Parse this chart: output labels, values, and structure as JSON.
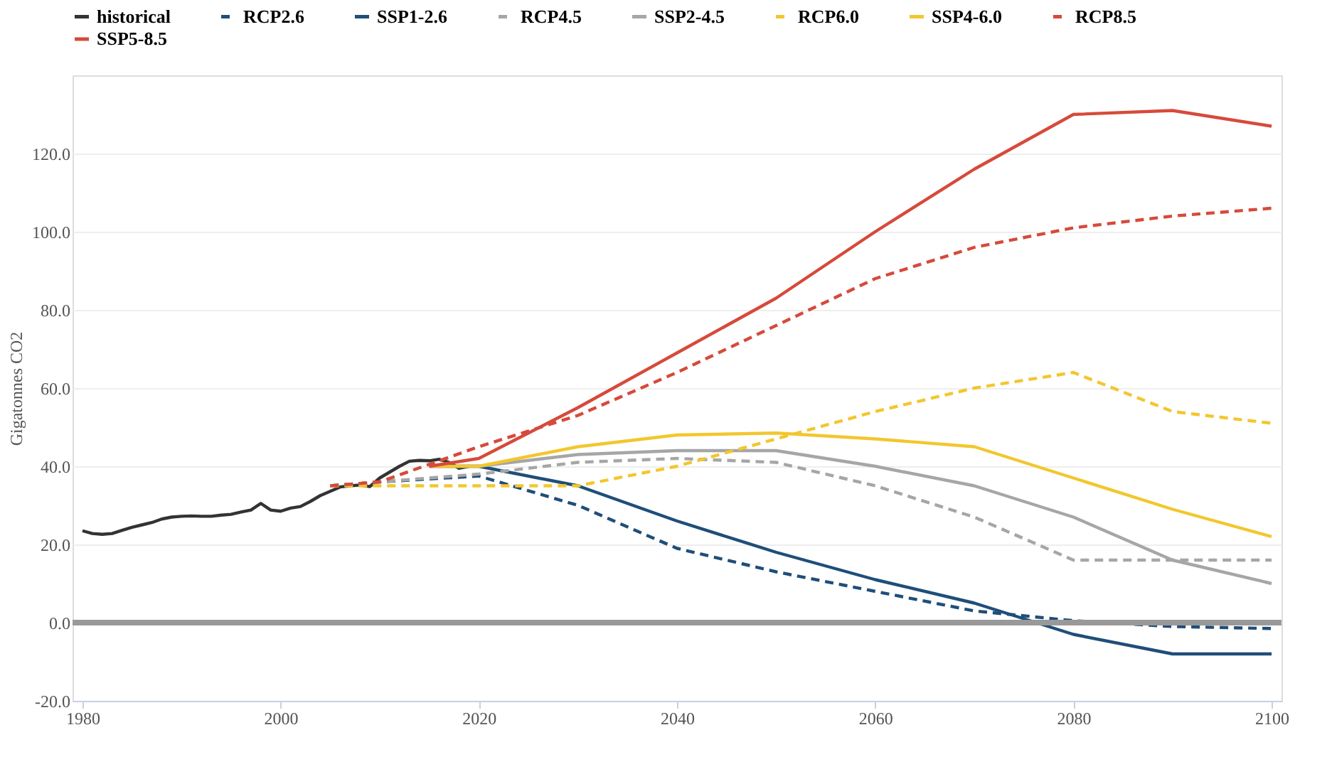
{
  "chart_data": {
    "type": "line",
    "ylabel": "Gigatonnes CO2",
    "legend": "top left",
    "grid": "y",
    "xlim": [
      1979,
      2101
    ],
    "xticks": [
      1980,
      2000,
      2020,
      2040,
      2060,
      2080,
      2100
    ],
    "ylim": [
      -20,
      140
    ],
    "yticks": [
      {
        "value": -20,
        "label": "-20.0"
      },
      {
        "value": 0,
        "label": "0.0"
      },
      {
        "value": 20,
        "label": "20.0"
      },
      {
        "value": 40,
        "label": "40.0"
      },
      {
        "value": 60,
        "label": "60.0"
      },
      {
        "value": 80,
        "label": "80.0"
      },
      {
        "value": 100,
        "label": "100.0"
      },
      {
        "value": 120,
        "label": "120.0"
      }
    ],
    "ref_lines": [
      {
        "axis": "y",
        "value": 0,
        "label": null,
        "color": "#999999"
      }
    ],
    "series": [
      {
        "name": "historical",
        "color": "#333333",
        "line_style": "solid",
        "x": [
          1980,
          1981,
          1982,
          1983,
          1984,
          1985,
          1986,
          1987,
          1988,
          1989,
          1990,
          1991,
          1992,
          1993,
          1994,
          1995,
          1996,
          1997,
          1998,
          1999,
          2000,
          2001,
          2002,
          2003,
          2004,
          2005,
          2006,
          2007,
          2008,
          2009,
          2010,
          2011,
          2012,
          2013,
          2014,
          2015,
          2016,
          2017,
          2018,
          2019
        ],
        "values": [
          23.5,
          22.8,
          22.6,
          22.8,
          23.6,
          24.4,
          25,
          25.6,
          26.5,
          27,
          27.2,
          27.3,
          27.2,
          27.2,
          27.5,
          27.7,
          28.3,
          28.8,
          30.5,
          28.8,
          28.5,
          29.3,
          29.7,
          31,
          32.5,
          33.6,
          34.7,
          35,
          35.2,
          34.8,
          37,
          38.5,
          40,
          41.3,
          41.5,
          41.4,
          41.8,
          41,
          39.5,
          40
        ]
      },
      {
        "name": "RCP2.6",
        "color": "#1f4e79",
        "line_style": "dashed",
        "x": [
          2005,
          2010,
          2020,
          2030,
          2040,
          2050,
          2060,
          2070,
          2080,
          2090,
          2100
        ],
        "values": [
          35,
          36,
          37.5,
          30,
          19,
          13,
          8,
          3,
          0.5,
          -1,
          -1.5
        ]
      },
      {
        "name": "SSP1-2.6",
        "color": "#1f4e79",
        "line_style": "solid",
        "x": [
          2015,
          2020,
          2030,
          2040,
          2050,
          2060,
          2070,
          2080,
          2090,
          2100
        ],
        "values": [
          40,
          40,
          35,
          26,
          18,
          11,
          5,
          -3,
          -8,
          -8
        ]
      },
      {
        "name": "RCP4.5",
        "color": "#a6a6a6",
        "line_style": "dashed",
        "x": [
          2005,
          2010,
          2020,
          2030,
          2040,
          2050,
          2060,
          2070,
          2080,
          2090,
          2100
        ],
        "values": [
          35,
          36,
          38,
          41,
          42,
          41,
          35,
          27,
          16,
          16,
          16
        ]
      },
      {
        "name": "SSP2-4.5",
        "color": "#a6a6a6",
        "line_style": "solid",
        "x": [
          2015,
          2020,
          2030,
          2040,
          2050,
          2060,
          2070,
          2080,
          2090,
          2100
        ],
        "values": [
          40,
          40,
          43,
          44,
          44,
          40,
          35,
          27,
          16,
          10
        ]
      },
      {
        "name": "RCP6.0",
        "color": "#f2c72e",
        "line_style": "dashed",
        "x": [
          2005,
          2010,
          2020,
          2030,
          2040,
          2050,
          2060,
          2070,
          2080,
          2090,
          2100
        ],
        "values": [
          35,
          35,
          35,
          35,
          40,
          47,
          54,
          60,
          64,
          54,
          51
        ]
      },
      {
        "name": "SSP4-6.0",
        "color": "#f2c72e",
        "line_style": "solid",
        "x": [
          2015,
          2020,
          2030,
          2040,
          2050,
          2060,
          2070,
          2080,
          2090,
          2100
        ],
        "values": [
          40,
          40,
          45,
          48,
          48.5,
          47,
          45,
          37,
          29,
          22
        ]
      },
      {
        "name": "RCP8.5",
        "color": "#d64a3b",
        "line_style": "dashed",
        "x": [
          2005,
          2010,
          2020,
          2030,
          2040,
          2050,
          2060,
          2070,
          2080,
          2090,
          2100
        ],
        "values": [
          35,
          36,
          45,
          53,
          64,
          76,
          88,
          96,
          101,
          104,
          106
        ]
      },
      {
        "name": "SSP5-8.5",
        "color": "#d64a3b",
        "line_style": "solid",
        "x": [
          2015,
          2020,
          2030,
          2040,
          2050,
          2060,
          2070,
          2080,
          2090,
          2100
        ],
        "values": [
          40,
          42,
          55,
          69,
          83,
          100,
          116,
          130,
          131,
          127
        ]
      }
    ]
  }
}
